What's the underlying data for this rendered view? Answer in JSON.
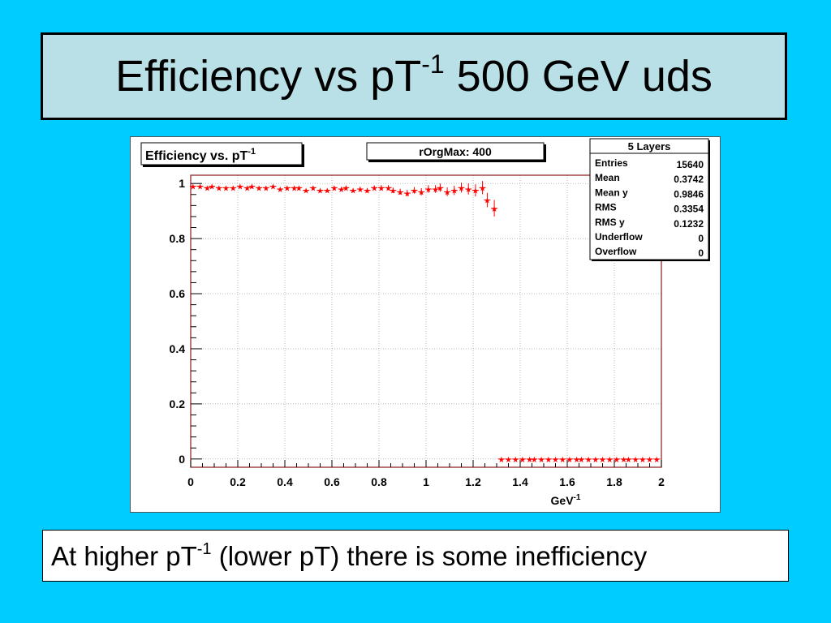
{
  "slide": {
    "title_main": "Efficiency vs pT",
    "title_sup": "-1",
    "title_rest": " 500 GeV uds",
    "caption_main": "At higher pT",
    "caption_sup": "-1",
    "caption_rest": " (lower pT) there is some inefficiency"
  },
  "colors": {
    "background": "#00ccff",
    "title_box": "#b9e0e6",
    "marker": "#ff0000",
    "frame": "#8b1a1a"
  },
  "chart_data": {
    "type": "scatter",
    "histogram_title": "Efficiency vs. pT",
    "histogram_title_sup": "-1",
    "label_box": "rOrgMax: 400",
    "xlabel": "GeV",
    "xlabel_sup": "-1",
    "ylabel": "",
    "xlim": [
      0,
      2
    ],
    "ylim": [
      -0.03,
      1.03
    ],
    "grid": true,
    "x_ticks": [
      "0",
      "0.2",
      "0.4",
      "0.6",
      "0.8",
      "1",
      "1.2",
      "1.4",
      "1.6",
      "1.8",
      "2"
    ],
    "y_ticks": [
      "0",
      "0.2",
      "0.4",
      "0.6",
      "0.8",
      "1"
    ],
    "stats_box": {
      "title": "5 Layers",
      "rows": [
        {
          "label": "Entries",
          "value": "15640"
        },
        {
          "label": "Mean",
          "value": "0.3742"
        },
        {
          "label": "Mean y",
          "value": "0.9846"
        },
        {
          "label": "RMS",
          "value": "0.3354"
        },
        {
          "label": "RMS y",
          "value": "0.1232"
        },
        {
          "label": "Underflow",
          "value": "0"
        },
        {
          "label": "Overflow",
          "value": "0"
        }
      ]
    },
    "series": [
      {
        "x": [
          0.01,
          0.04,
          0.07,
          0.09,
          0.12,
          0.15,
          0.18,
          0.21,
          0.24,
          0.26,
          0.29,
          0.32,
          0.35,
          0.38,
          0.41,
          0.44,
          0.46,
          0.49,
          0.52,
          0.55,
          0.58,
          0.61,
          0.64,
          0.66,
          0.69,
          0.72,
          0.75,
          0.78,
          0.81,
          0.84,
          0.86,
          0.89,
          0.92,
          0.95,
          0.98,
          1.01,
          1.04,
          1.06,
          1.09,
          1.12,
          1.15,
          1.18,
          1.21,
          1.24,
          1.26,
          1.29,
          1.32,
          1.35,
          1.38,
          1.41,
          1.44,
          1.46,
          1.49,
          1.52,
          1.55,
          1.58,
          1.61,
          1.64,
          1.66,
          1.69,
          1.72,
          1.75,
          1.78,
          1.81,
          1.84,
          1.86,
          1.89,
          1.92,
          1.95,
          1.98
        ],
        "y": [
          0.99,
          0.99,
          0.985,
          0.99,
          0.985,
          0.985,
          0.985,
          0.99,
          0.985,
          0.99,
          0.985,
          0.985,
          0.99,
          0.98,
          0.985,
          0.985,
          0.985,
          0.975,
          0.985,
          0.975,
          0.975,
          0.985,
          0.98,
          0.985,
          0.975,
          0.98,
          0.975,
          0.985,
          0.985,
          0.985,
          0.975,
          0.97,
          0.965,
          0.975,
          0.97,
          0.98,
          0.98,
          0.985,
          0.97,
          0.975,
          0.985,
          0.98,
          0.975,
          0.985,
          0.94,
          0.91,
          0,
          0,
          0,
          0,
          0,
          0,
          0,
          0,
          0,
          0,
          0,
          0,
          0,
          0,
          0,
          0,
          0,
          0,
          0,
          0,
          0,
          0,
          0,
          0
        ],
        "yerr": [
          0.004,
          0.004,
          0.004,
          0.004,
          0.004,
          0.004,
          0.004,
          0.004,
          0.004,
          0.004,
          0.004,
          0.004,
          0.004,
          0.005,
          0.005,
          0.005,
          0.005,
          0.006,
          0.006,
          0.006,
          0.006,
          0.006,
          0.007,
          0.007,
          0.007,
          0.008,
          0.008,
          0.008,
          0.009,
          0.009,
          0.01,
          0.011,
          0.012,
          0.012,
          0.013,
          0.014,
          0.014,
          0.015,
          0.016,
          0.017,
          0.018,
          0.02,
          0.022,
          0.024,
          0.026,
          0.03,
          0,
          0,
          0,
          0,
          0,
          0,
          0,
          0,
          0,
          0,
          0,
          0,
          0,
          0,
          0,
          0,
          0,
          0,
          0,
          0,
          0,
          0,
          0,
          0
        ]
      }
    ]
  }
}
